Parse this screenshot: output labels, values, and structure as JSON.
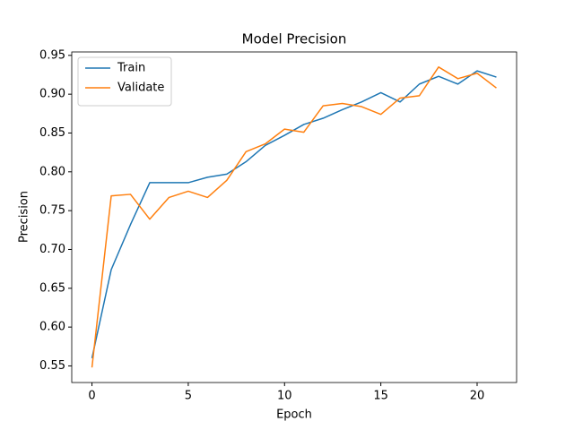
{
  "chart_data": {
    "type": "line",
    "title": "Model Precision",
    "x_label": "Epoch",
    "y_label": "Precision",
    "x": [
      0,
      1,
      2,
      3,
      4,
      5,
      6,
      7,
      8,
      9,
      10,
      11,
      12,
      13,
      14,
      15,
      16,
      17,
      18,
      19,
      20,
      21
    ],
    "series": [
      {
        "name": "Train",
        "color": "#1f77b4",
        "values": [
          0.56,
          0.674,
          0.732,
          0.786,
          0.786,
          0.786,
          0.793,
          0.797,
          0.813,
          0.834,
          0.847,
          0.861,
          0.869,
          0.88,
          0.89,
          0.902,
          0.89,
          0.913,
          0.923,
          0.913,
          0.93,
          0.922
        ]
      },
      {
        "name": "Validate",
        "color": "#ff7f0e",
        "values": [
          0.548,
          0.769,
          0.771,
          0.739,
          0.767,
          0.775,
          0.767,
          0.789,
          0.826,
          0.836,
          0.855,
          0.851,
          0.885,
          0.888,
          0.884,
          0.874,
          0.895,
          0.898,
          0.935,
          0.92,
          0.927,
          0.908
        ]
      }
    ],
    "xlim": [
      -1.05,
      22.05
    ],
    "xticks": [
      0,
      5,
      10,
      15,
      20
    ],
    "ylim": [
      0.5286,
      0.9544
    ],
    "yticks": [
      0.55,
      {
        "value": 0.6,
        "label": "0.60"
      },
      0.65,
      {
        "value": 0.7,
        "label": "0.70"
      },
      0.75,
      {
        "value": 0.8,
        "label": "0.80"
      },
      0.85,
      {
        "value": 0.9,
        "label": "0.90"
      },
      0.95
    ],
    "legend": "upper left",
    "grid": false
  }
}
